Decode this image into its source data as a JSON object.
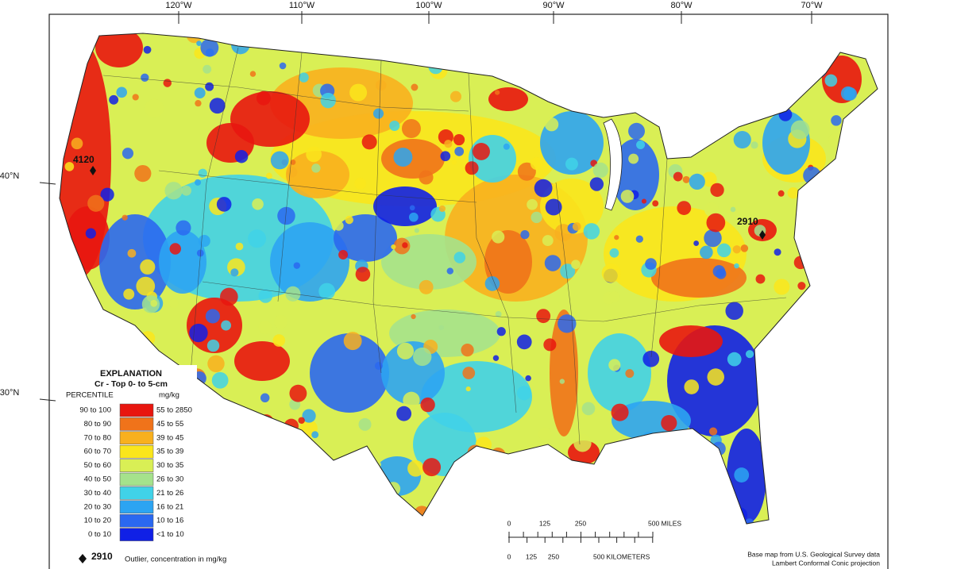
{
  "map": {
    "longitude_labels": [
      "120°W",
      "110°W",
      "100°W",
      "90°W",
      "80°W",
      "70°W"
    ],
    "latitude_labels": [
      "40°N",
      "30°N"
    ],
    "outliers": [
      {
        "label": "4120"
      },
      {
        "label": "2910"
      }
    ],
    "legend": {
      "title": "EXPLANATION",
      "subtitle": "Cr - Top 0- to 5-cm",
      "column_headers": [
        "PERCENTILE",
        "mg/kg"
      ],
      "classes": [
        {
          "percentile": "90 to 100",
          "range": "55 to 2850",
          "color": "#e8160f"
        },
        {
          "percentile": "80 to 90",
          "range": "45 to 55",
          "color": "#f0731a"
        },
        {
          "percentile": "70 to 80",
          "range": "39 to 45",
          "color": "#f8b01e"
        },
        {
          "percentile": "60 to 70",
          "range": "35 to 39",
          "color": "#fae61c"
        },
        {
          "percentile": "50 to 60",
          "range": "30 to 35",
          "color": "#d9ef55"
        },
        {
          "percentile": "40 to 50",
          "range": "26 to 30",
          "color": "#a5e28c"
        },
        {
          "percentile": "30 to 40",
          "range": "21 to 26",
          "color": "#40d2e8"
        },
        {
          "percentile": "20 to 30",
          "range": "16 to 21",
          "color": "#2ca4f2"
        },
        {
          "percentile": "10 to 20",
          "range": "10 to 16",
          "color": "#2a68f0"
        },
        {
          "percentile": "0 to 10",
          "range": "<1 to 10",
          "color": "#1020e6"
        }
      ],
      "outlier_note": {
        "label": "2910",
        "text": "Outlier, concentration in mg/kg"
      }
    },
    "scale_bar": {
      "miles": [
        "0",
        "125",
        "250",
        "500 MILES"
      ],
      "kilometers": [
        "0",
        "125",
        "250",
        "500 KILOMETERS"
      ]
    },
    "credits": [
      "Base map from U.S. Geological Survey data",
      "Lambert Conformal Conic projection"
    ]
  }
}
